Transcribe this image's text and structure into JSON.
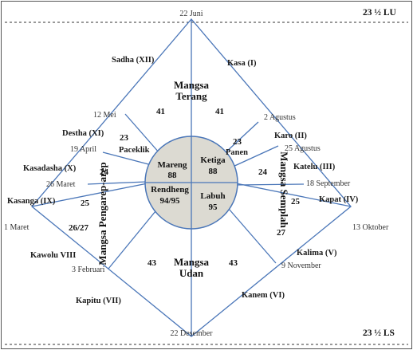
{
  "latitudes": {
    "north": "23 ½ LU",
    "south": "23 ½ LS"
  },
  "dates": {
    "d_22_juni": "22 Juni",
    "d_2_agustus": "2 Agustus",
    "d_25_agustus": "25 Agustus",
    "d_18_september": "18 September",
    "d_13_oktober": "13 Oktober",
    "d_9_november": "9 November",
    "d_22_desember": "22 Desember",
    "d_3_februari": "3 Februari",
    "d_1_maret": "1 Maret",
    "d_26_maret": "26 Maret",
    "d_19_april": "19 April",
    "d_12_mei": "12 Mei"
  },
  "mangsa_names": {
    "kasa": "Kasa (I)",
    "karo": "Karo (II)",
    "katelu": "Katelu (III)",
    "kapat": "Kapat (IV)",
    "kalima": "Kalima (V)",
    "kanem": "Kanem (VI)",
    "kapitu": "Kapitu (VII)",
    "kawolu": "Kawolu VIII",
    "kasanga": "Kasanga (IX)",
    "kasadasha": "Kasadasha (X)",
    "destha": "Destha (XI)",
    "sadha": "Sadha (XII)"
  },
  "day_counts": {
    "kasa": "41",
    "sadha": "41",
    "karo": "23",
    "destha": "23",
    "katelu": "24",
    "kasadasha": "24",
    "kapat": "25",
    "kasanga": "25",
    "kalima": "27",
    "kawolu": "26/27",
    "kanem": "43",
    "kapitu": "43"
  },
  "big_seasons": {
    "terang_1": "Mangsa",
    "terang_2": "Terang",
    "udan_1": "Mangsa",
    "udan_2": "Udan",
    "semplah": "Mangsa Semplah",
    "pengarep": "Mangsa Pengarep-arep"
  },
  "sub_seasons": {
    "paceklik": "Paceklik",
    "panen": "Panen"
  },
  "center": {
    "mareng_label": "Mareng",
    "mareng_days": "88",
    "ketiga_label": "Ketiga",
    "ketiga_days": "88",
    "rendheng_label": "Rendheng",
    "rendheng_days": "94/95",
    "labuh_label": "Labuh",
    "labuh_days": "95"
  }
}
